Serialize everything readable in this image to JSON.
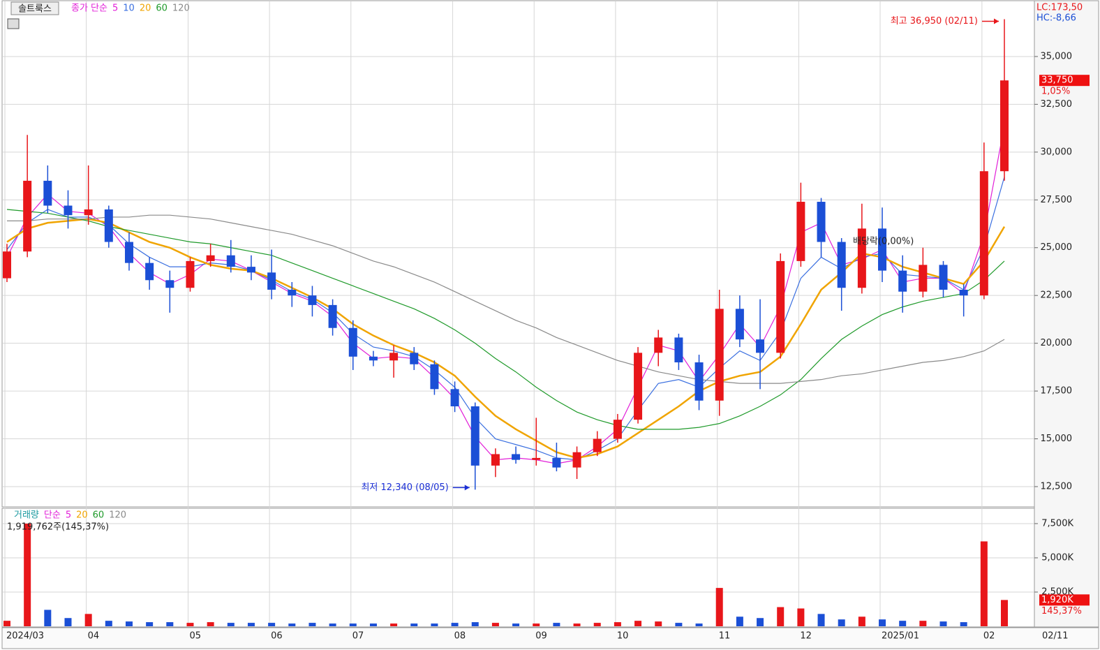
{
  "chart_data": {
    "type": "candlestick",
    "title": "솔트룩스",
    "indicator": "종가 단순",
    "categories": [
      "2024/03",
      null,
      null,
      null,
      "04",
      null,
      null,
      null,
      null,
      "05",
      null,
      null,
      null,
      "06",
      null,
      null,
      null,
      "07",
      null,
      null,
      null,
      null,
      "08",
      null,
      null,
      null,
      "09",
      null,
      null,
      null,
      "10",
      null,
      null,
      null,
      null,
      "11",
      null,
      null,
      null,
      "12",
      null,
      null,
      null,
      "2025/01",
      null,
      null,
      null,
      null,
      "02",
      null
    ],
    "x_end_label": "02/11",
    "open": [
      23400,
      24800,
      28500,
      27200,
      26700,
      27000,
      25300,
      24200,
      23300,
      22900,
      24300,
      24600,
      24000,
      23700,
      22800,
      22500,
      22000,
      20800,
      19300,
      19100,
      19500,
      18900,
      17600,
      16700,
      13600,
      14200,
      13900,
      14000,
      13500,
      14300,
      15000,
      16000,
      19500,
      20300,
      19000,
      17000,
      21800,
      20200,
      19500,
      24300,
      27400,
      25300,
      22900,
      26000,
      23800,
      22700,
      24100,
      22800,
      22500,
      29000
    ],
    "high": [
      25200,
      30900,
      29300,
      28000,
      29300,
      27200,
      25800,
      24500,
      23800,
      24500,
      25200,
      25400,
      24600,
      24900,
      23200,
      23000,
      22300,
      21200,
      19600,
      19900,
      19800,
      19100,
      18000,
      16900,
      14500,
      14600,
      16100,
      14800,
      14600,
      15400,
      16300,
      19800,
      20700,
      20500,
      19400,
      22800,
      22500,
      22300,
      24700,
      28400,
      27600,
      25500,
      27300,
      27100,
      24600,
      25000,
      24300,
      23100,
      30500,
      36950
    ],
    "low": [
      23200,
      24500,
      26800,
      26000,
      26200,
      25000,
      23800,
      22800,
      21600,
      22700,
      24000,
      23700,
      23300,
      22300,
      21900,
      21400,
      20400,
      18600,
      18800,
      18200,
      18600,
      17300,
      16400,
      12340,
      13000,
      13700,
      13600,
      13300,
      12900,
      14100,
      14800,
      15800,
      18800,
      18600,
      16500,
      16200,
      19800,
      17600,
      19200,
      24000,
      24500,
      21700,
      22600,
      23200,
      21600,
      22400,
      22400,
      21400,
      22300,
      28500
    ],
    "close": [
      24800,
      28500,
      27200,
      26700,
      27000,
      25300,
      24200,
      23300,
      22900,
      24300,
      24600,
      24000,
      23700,
      22800,
      22500,
      22000,
      20800,
      19300,
      19100,
      19500,
      18900,
      17600,
      16700,
      13600,
      14200,
      13900,
      14000,
      13500,
      14300,
      15000,
      16000,
      19500,
      20300,
      19000,
      17000,
      21800,
      20200,
      19500,
      24300,
      27400,
      25300,
      22900,
      26000,
      23800,
      22700,
      24100,
      22800,
      22500,
      29000,
      33750
    ],
    "up_color": "#e8161a",
    "down_color": "#1b4fd6",
    "series": [
      {
        "name": "5",
        "color": "#e21fd8",
        "values": [
          24500,
          26600,
          27800,
          26900,
          26800,
          26100,
          24700,
          23700,
          23100,
          23600,
          24400,
          24300,
          23800,
          23200,
          22600,
          22200,
          21400,
          20000,
          19200,
          19300,
          19200,
          18200,
          17100,
          15100,
          13900,
          14000,
          13900,
          13700,
          13900,
          14600,
          15500,
          17700,
          19900,
          19600,
          18000,
          19400,
          21000,
          19800,
          21900,
          25800,
          26300,
          24100,
          24400,
          24900,
          23200,
          23400,
          23400,
          22600,
          25700,
          31400
        ]
      },
      {
        "name": "10",
        "color": "#3a6fe0",
        "values": [
          24900,
          26300,
          27000,
          26600,
          26600,
          26200,
          25200,
          24500,
          24000,
          24000,
          24200,
          24100,
          23800,
          23300,
          22700,
          22300,
          21600,
          20500,
          19800,
          19600,
          19300,
          18600,
          17700,
          16100,
          15000,
          14700,
          14400,
          14000,
          13900,
          14400,
          15000,
          16500,
          17900,
          18100,
          17700,
          18700,
          19600,
          19100,
          20600,
          23400,
          24500,
          23900,
          24500,
          24700,
          23600,
          23500,
          23400,
          22800,
          25000,
          28700
        ]
      },
      {
        "name": "20",
        "color": "#f0a400",
        "values": [
          25300,
          26000,
          26300,
          26400,
          26500,
          26300,
          25800,
          25300,
          25000,
          24500,
          24100,
          23900,
          23800,
          23400,
          22900,
          22400,
          21800,
          21000,
          20400,
          19900,
          19500,
          19000,
          18300,
          17200,
          16200,
          15500,
          14900,
          14300,
          14000,
          14200,
          14600,
          15300,
          16000,
          16700,
          17500,
          18000,
          18300,
          18500,
          19300,
          21000,
          22800,
          23700,
          24700,
          24500,
          24000,
          23700,
          23400,
          23100,
          24300,
          26100
        ]
      },
      {
        "name": "60",
        "color": "#1f9a2a",
        "values": [
          27000,
          26900,
          26800,
          26600,
          26400,
          26100,
          25900,
          25700,
          25500,
          25300,
          25200,
          25000,
          24800,
          24600,
          24200,
          23800,
          23400,
          23000,
          22600,
          22200,
          21800,
          21300,
          20700,
          20000,
          19200,
          18500,
          17700,
          17000,
          16400,
          16000,
          15700,
          15500,
          15500,
          15500,
          15600,
          15800,
          16200,
          16700,
          17300,
          18100,
          19200,
          20200,
          20900,
          21500,
          21900,
          22200,
          22400,
          22600,
          23300,
          24300
        ]
      },
      {
        "name": "120",
        "color": "#8a8a8a",
        "values": [
          26400,
          26400,
          26500,
          26500,
          26500,
          26600,
          26600,
          26700,
          26700,
          26600,
          26500,
          26300,
          26100,
          25900,
          25700,
          25400,
          25100,
          24700,
          24300,
          24000,
          23600,
          23200,
          22700,
          22200,
          21700,
          21200,
          20800,
          20300,
          19900,
          19500,
          19100,
          18800,
          18500,
          18300,
          18100,
          18000,
          17900,
          17900,
          17900,
          18000,
          18100,
          18300,
          18400,
          18600,
          18800,
          19000,
          19100,
          19300,
          19600,
          20200
        ]
      }
    ],
    "ylim": [
      11440,
      37920
    ],
    "yticks": [
      {
        "value": 12500,
        "label": "12,500"
      },
      {
        "value": 15000,
        "label": "15,000"
      },
      {
        "value": 17500,
        "label": "17,500"
      },
      {
        "value": 20000,
        "label": "20,000"
      },
      {
        "value": 22500,
        "label": "22,500"
      },
      {
        "value": 25000,
        "label": "25,000"
      },
      {
        "value": 27500,
        "label": "27,500"
      },
      {
        "value": 30000,
        "label": "30,000"
      },
      {
        "value": 32500,
        "label": "32,500"
      },
      {
        "value": 35000,
        "label": "35,000"
      }
    ],
    "grid": true,
    "last_label": "33,750",
    "change_label": "1,05%",
    "lc_label": "LC:173,50",
    "hc_label": "HC:-8,66",
    "annotations": [
      {
        "text": "최고 36,950 (02/11)",
        "value": 36950,
        "index": 49,
        "color": "#e8161a"
      },
      {
        "text": "최저 12,340 (08/05)",
        "value": 12340,
        "index": 23,
        "color": "#1b2fd6"
      }
    ],
    "note": "배당락(0,00%)",
    "volume_title": "거래량",
    "volume_indicator": "단순",
    "volume_legend": [
      {
        "name": "5",
        "color": "#e21fd8"
      },
      {
        "name": "20",
        "color": "#f0a400"
      },
      {
        "name": "60",
        "color": "#1f9a2a"
      },
      {
        "name": "120",
        "color": "#8a8a8a"
      }
    ],
    "volume_info": "1,919,762주(145,37%)",
    "volume": [
      400,
      7500,
      1200,
      600,
      900,
      400,
      350,
      300,
      300,
      250,
      300,
      250,
      250,
      250,
      200,
      250,
      200,
      200,
      200,
      200,
      200,
      200,
      250,
      300,
      250,
      200,
      200,
      250,
      200,
      250,
      300,
      400,
      350,
      250,
      200,
      2800,
      700,
      600,
      1400,
      1300,
      900,
      500,
      700,
      500,
      400,
      400,
      350,
      300,
      6200,
      1920
    ],
    "volume_last_label": "1,920K",
    "volume_change_label": "145,37%",
    "volume_ylim": [
      0,
      8620
    ],
    "volume_ticks": [
      {
        "value": 2500,
        "label": "2,500K"
      },
      {
        "value": 5000,
        "label": "5,000K"
      },
      {
        "value": 7500,
        "label": "7,500K"
      }
    ]
  }
}
